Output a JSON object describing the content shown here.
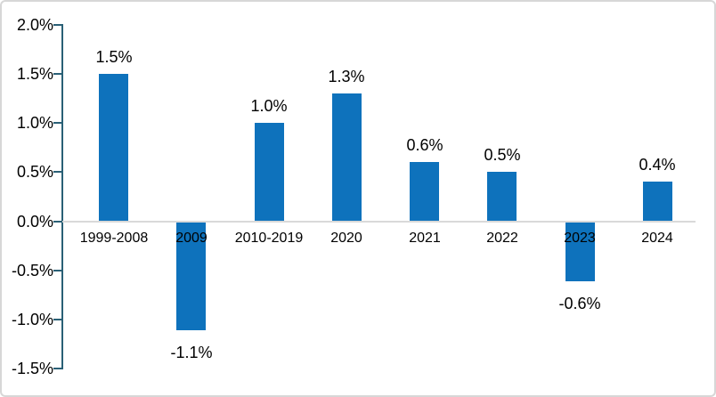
{
  "chart_data": {
    "type": "bar",
    "title": "",
    "xlabel": "",
    "ylabel": "",
    "categories": [
      "1999-2008",
      "2009",
      "2010-2019",
      "2020",
      "2021",
      "2022",
      "2023",
      "2024"
    ],
    "values": [
      1.5,
      -1.1,
      1.0,
      1.3,
      0.6,
      0.5,
      -0.6,
      0.4
    ],
    "data_labels": [
      "1.5%",
      "-1.1%",
      "1.0%",
      "1.3%",
      "0.6%",
      "0.5%",
      "-0.6%",
      "0.4%"
    ],
    "y_tick_labels": [
      "2.0%",
      "1.5%",
      "1.0%",
      "0.5%",
      "0.0%",
      "-0.5%",
      "-1.0%",
      "-1.5%"
    ],
    "y_tick_values": [
      2.0,
      1.5,
      1.0,
      0.5,
      0.0,
      -0.5,
      -1.0,
      -1.5
    ],
    "ylim": [
      -1.5,
      2.0
    ],
    "grid": "off",
    "legend_position": "none",
    "bar_color": "#0e72bc",
    "axis_color": "#2a6076",
    "zero_line_color": "#d9d9d9",
    "label_color": "#000000",
    "card_border_color": "#d7d7d7"
  }
}
